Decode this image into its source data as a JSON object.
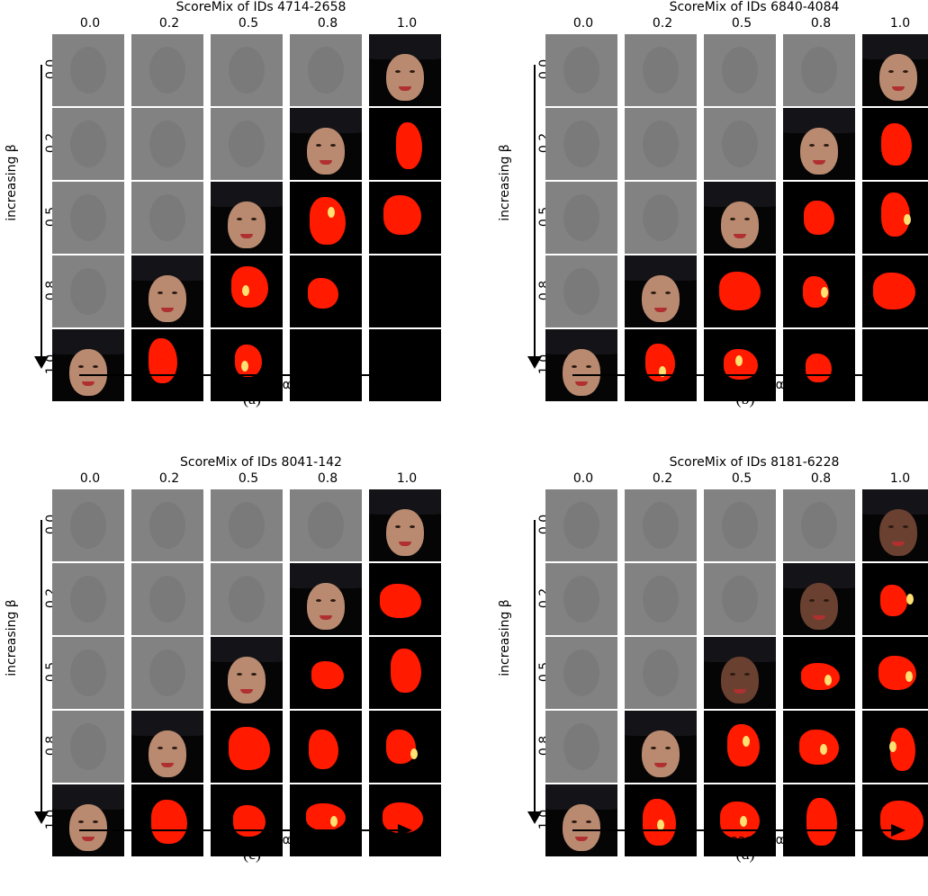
{
  "axis_labels": {
    "x": "increasing α",
    "y": "increasing β"
  },
  "col_labels": [
    "0.0",
    "0.2",
    "0.5",
    "0.8",
    "1.0"
  ],
  "row_labels": [
    "0.0",
    "0.2",
    "0.5",
    "0.8",
    "1.0"
  ],
  "panels": [
    {
      "title": "ScoreMix of IDs 4714-2658",
      "label": "(a)",
      "grid": [
        [
          "gray",
          "gray",
          "gray",
          "gray",
          "face"
        ],
        [
          "gray",
          "gray",
          "gray",
          "face",
          "heat"
        ],
        [
          "gray",
          "gray",
          "face",
          "heat",
          "heat"
        ],
        [
          "gray",
          "face",
          "heat",
          "heat",
          "empty"
        ],
        [
          "face",
          "heat",
          "heat",
          "empty",
          "empty"
        ]
      ]
    },
    {
      "title": "ScoreMix of IDs 6840-4084",
      "label": "(b)",
      "grid": [
        [
          "gray",
          "gray",
          "gray",
          "gray",
          "face"
        ],
        [
          "gray",
          "gray",
          "gray",
          "face",
          "heat"
        ],
        [
          "gray",
          "gray",
          "face",
          "heat",
          "heat"
        ],
        [
          "gray",
          "face",
          "heat",
          "heat",
          "heat"
        ],
        [
          "face",
          "heat",
          "heat",
          "heat",
          "empty"
        ]
      ]
    },
    {
      "title": "ScoreMix of IDs 8041-142",
      "label": "(c)",
      "grid": [
        [
          "gray",
          "gray",
          "gray",
          "gray",
          "face"
        ],
        [
          "gray",
          "gray",
          "gray",
          "face",
          "heat"
        ],
        [
          "gray",
          "gray",
          "face",
          "heat",
          "heat"
        ],
        [
          "gray",
          "face",
          "heat",
          "heat",
          "heat"
        ],
        [
          "face",
          "heat",
          "heat",
          "heat",
          "heat"
        ]
      ]
    },
    {
      "title": "ScoreMix of IDs 8181-6228",
      "label": "(d)",
      "grid": [
        [
          "gray",
          "gray",
          "gray",
          "gray",
          "face"
        ],
        [
          "gray",
          "gray",
          "gray",
          "face",
          "heat"
        ],
        [
          "gray",
          "gray",
          "face",
          "heat",
          "heat"
        ],
        [
          "gray",
          "face",
          "heat",
          "heat",
          "heat"
        ],
        [
          "face",
          "heat",
          "heat",
          "heat",
          "heat"
        ]
      ]
    }
  ]
}
